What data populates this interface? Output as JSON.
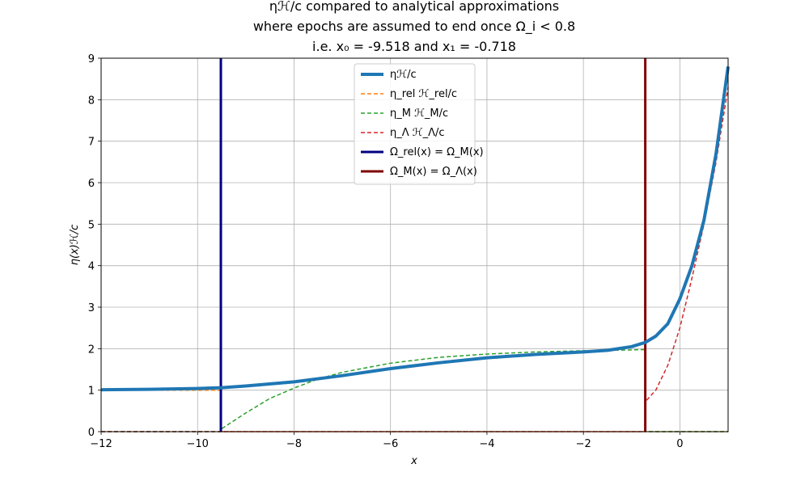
{
  "chart_data": {
    "type": "line",
    "title": {
      "line1": "ηℋ/c compared to analytical approximations",
      "line2": "where epochs are assumed to end once Ω_i < 0.8",
      "line3": "i.e. x₀ = -9.518 and x₁ = -0.718"
    },
    "xlabel": "x",
    "ylabel": "η(x)ℋ/c",
    "xlim": [
      -12,
      1
    ],
    "ylim": [
      0,
      9
    ],
    "x_ticks": [
      -12,
      -10,
      -8,
      -6,
      -4,
      -2,
      0
    ],
    "x_tick_labels": [
      "−12",
      "−10",
      "−8",
      "−6",
      "−4",
      "−2",
      "0"
    ],
    "y_ticks": [
      0,
      1,
      2,
      3,
      4,
      5,
      6,
      7,
      8,
      9
    ],
    "y_tick_labels": [
      "0",
      "1",
      "2",
      "3",
      "4",
      "5",
      "6",
      "7",
      "8",
      "9"
    ],
    "grid": true,
    "legend_position": "top-center",
    "series": [
      {
        "name": "ηℋ/c",
        "style": "solid",
        "color": "#1f77b4",
        "x": [
          -12,
          -11,
          -10,
          -9.5,
          -9,
          -8,
          -7,
          -6,
          -5,
          -4,
          -3,
          -2,
          -1.5,
          -1,
          -0.718,
          -0.5,
          -0.25,
          0,
          0.25,
          0.5,
          0.75,
          1
        ],
        "y": [
          1.01,
          1.02,
          1.04,
          1.06,
          1.1,
          1.2,
          1.35,
          1.52,
          1.66,
          1.78,
          1.86,
          1.92,
          1.96,
          2.05,
          2.15,
          2.3,
          2.6,
          3.2,
          4.0,
          5.1,
          6.7,
          8.8
        ]
      },
      {
        "name": "η_rel ℋ_rel/c",
        "style": "dashed",
        "color": "#ff7f0e",
        "x": [
          -12,
          -11,
          -10,
          -9.518,
          -9.518,
          1
        ],
        "y": [
          1.0,
          1.0,
          1.0,
          1.0,
          0.0,
          0.0
        ]
      },
      {
        "name": "η_M ℋ_M/c",
        "style": "dashed",
        "color": "#2ca02c",
        "x": [
          -12,
          -9.518,
          -9.5,
          -9,
          -8.5,
          -8,
          -7.5,
          -7,
          -6,
          -5,
          -4,
          -3,
          -2,
          -1,
          -0.718,
          -0.718,
          1
        ],
        "y": [
          0.0,
          0.0,
          0.07,
          0.45,
          0.8,
          1.05,
          1.27,
          1.43,
          1.65,
          1.79,
          1.87,
          1.92,
          1.95,
          1.97,
          1.98,
          0.0,
          0.0
        ]
      },
      {
        "name": "η_Λ ℋ_Λ/c",
        "style": "dashed",
        "color": "#d62728",
        "x": [
          -12,
          -0.718,
          -0.718,
          -0.5,
          -0.25,
          0,
          0.25,
          0.5,
          0.75,
          1
        ],
        "y": [
          0.0,
          0.0,
          0.72,
          1.0,
          1.6,
          2.5,
          3.7,
          5.0,
          6.5,
          8.3
        ]
      },
      {
        "name": "Ω_rel(x) = Ω_M(x)",
        "style": "vline",
        "color": "#00007f",
        "x": [
          -9.518,
          -9.518
        ],
        "y": [
          0,
          9
        ]
      },
      {
        "name": "Ω_M(x) = Ω_Λ(x)",
        "style": "vline",
        "color": "#7f0000",
        "x": [
          -0.718,
          -0.718
        ],
        "y": [
          0,
          9
        ]
      }
    ]
  }
}
